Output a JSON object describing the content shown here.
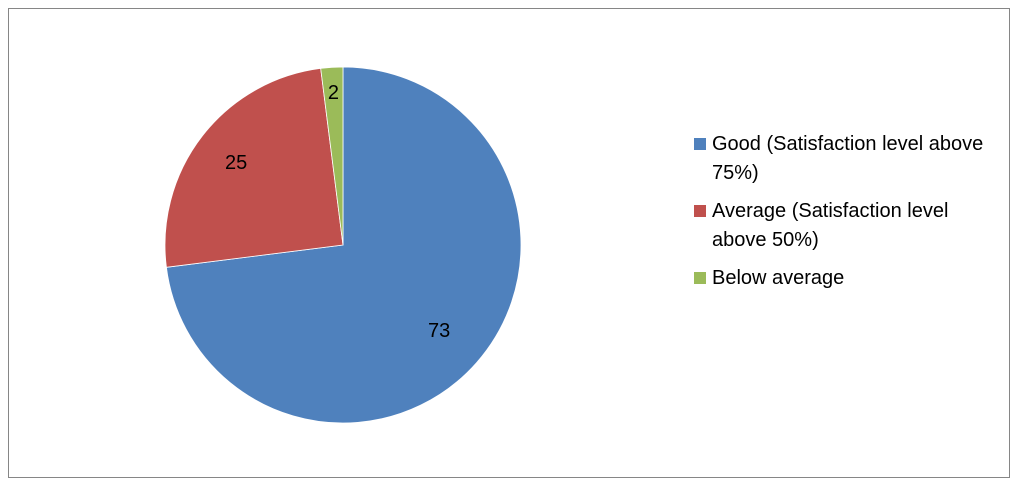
{
  "chart_data": {
    "type": "pie",
    "categories": [
      "Good (Satisfaction level above 75%)",
      "Average (Satisfaction level above 50%)",
      "Below average"
    ],
    "values": [
      73,
      25,
      2
    ],
    "data_labels": [
      "73",
      "25",
      "2"
    ],
    "colors": [
      "#4F81BD",
      "#C0504D",
      "#9BBB59"
    ],
    "start_angle_deg": 0,
    "direction": "clockwise",
    "legend_position": "right"
  },
  "legend": {
    "items": [
      {
        "label": "Good (Satisfaction level above 75%)",
        "color": "#4F81BD"
      },
      {
        "label": "Average (Satisfaction level above 50%)",
        "color": "#C0504D"
      },
      {
        "label": "Below average",
        "color": "#9BBB59"
      }
    ]
  }
}
